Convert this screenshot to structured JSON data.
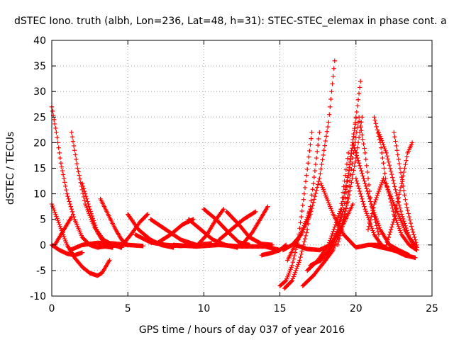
{
  "chart_data": {
    "type": "scatter",
    "title": "dSTEC Iono. truth (albh, Lon=236, Lat=48, h=31): STEC-STEC_elemax in phase cont. a",
    "xlabel": "GPS time / hours of day 037 of year 2016",
    "ylabel": "dSTEC  / TECUs",
    "xlim": [
      0,
      25
    ],
    "ylim": [
      -10,
      40
    ],
    "xticks": [
      0,
      5,
      10,
      15,
      20,
      25
    ],
    "yticks": [
      -10,
      -5,
      0,
      5,
      10,
      15,
      20,
      25,
      30,
      35,
      40
    ],
    "grid": true,
    "marker": "+",
    "color": "#ff0000",
    "series": [
      {
        "x": [
          0,
          0.3,
          0.6,
          1.0,
          1.5,
          2.0,
          2.5,
          3.0,
          3.5,
          4.0
        ],
        "y": [
          27,
          22,
          16,
          10,
          5,
          1.5,
          0,
          -0.5,
          -0.3,
          -0.5
        ]
      },
      {
        "x": [
          0,
          0.5,
          1.0,
          1.5,
          2.0,
          2.5,
          3.0,
          3.3,
          3.6,
          3.8
        ],
        "y": [
          8,
          4,
          0,
          -2.5,
          -4.3,
          -5.5,
          -6,
          -5.5,
          -4,
          -3
        ]
      },
      {
        "x": [
          0,
          0.5,
          1.0,
          1.5,
          2.0
        ],
        "y": [
          0,
          -1,
          -1.7,
          -2,
          -1.5
        ]
      },
      {
        "x": [
          0.2,
          0.5,
          0.8,
          1.1,
          1.3
        ],
        "y": [
          0,
          1.5,
          3,
          4.5,
          5.5
        ]
      },
      {
        "x": [
          1.3,
          1.7,
          2.2,
          2.8,
          3.4,
          4.0,
          4.6
        ],
        "y": [
          22,
          15,
          8,
          3.5,
          1,
          0,
          -0.5
        ]
      },
      {
        "x": [
          2.0,
          2.5,
          3.0,
          3.5,
          4.0
        ],
        "y": [
          12,
          7,
          2.5,
          0,
          -0.5
        ]
      },
      {
        "x": [
          1.2,
          2.0,
          3.0,
          4.0,
          5.0,
          6.0
        ],
        "y": [
          -1,
          0,
          0.4,
          0.3,
          0,
          -0.2
        ]
      },
      {
        "x": [
          3.2,
          3.7,
          4.2,
          4.6,
          5.0
        ],
        "y": [
          9,
          6,
          3,
          1,
          0
        ]
      },
      {
        "x": [
          5.0,
          5.7,
          6.5,
          7.2,
          8.0
        ],
        "y": [
          6,
          3,
          1,
          0,
          -0.5
        ]
      },
      {
        "x": [
          4.5,
          5.2,
          5.8,
          6.3
        ],
        "y": [
          -0.5,
          2,
          4.5,
          6
        ]
      },
      {
        "x": [
          5.5,
          6.5,
          7.5,
          8.5,
          9.5,
          10.5
        ],
        "y": [
          2,
          0.5,
          0,
          -0.2,
          0,
          0.3
        ]
      },
      {
        "x": [
          6.5,
          7.5,
          8.5,
          9.5
        ],
        "y": [
          5,
          3,
          1,
          0
        ]
      },
      {
        "x": [
          7.0,
          7.8,
          8.6,
          9.3
        ],
        "y": [
          0.5,
          2,
          4,
          5
        ]
      },
      {
        "x": [
          9.0,
          9.8,
          10.6,
          11.4,
          12.2
        ],
        "y": [
          5,
          3,
          1,
          0,
          -0.5
        ]
      },
      {
        "x": [
          9.5,
          10.2,
          10.8,
          11.3
        ],
        "y": [
          -0.3,
          2,
          5,
          7
        ]
      },
      {
        "x": [
          10.0,
          10.8,
          11.6,
          12.3,
          13.0
        ],
        "y": [
          7,
          5,
          2.5,
          0.5,
          0
        ]
      },
      {
        "x": [
          11.0,
          11.8,
          12.6,
          13.4
        ],
        "y": [
          1,
          3,
          5,
          6.5
        ]
      },
      {
        "x": [
          11.5,
          12.3,
          13.0,
          13.8,
          14.5
        ],
        "y": [
          6.5,
          4,
          1.5,
          0.2,
          0
        ]
      },
      {
        "x": [
          8.0,
          9.5,
          11.0,
          12.5,
          14.0,
          15.0
        ],
        "y": [
          0,
          -0.3,
          0,
          -0.3,
          -0.3,
          -1
        ]
      },
      {
        "x": [
          12.5,
          13.2,
          13.8,
          14.2
        ],
        "y": [
          0,
          2.5,
          5.5,
          7.5
        ]
      },
      {
        "x": [
          13.8,
          14.5,
          15.0,
          15.4
        ],
        "y": [
          -2,
          -1.5,
          -1,
          0
        ]
      },
      {
        "x": [
          15.0,
          15.4,
          15.8,
          16.2,
          16.6,
          17.1
        ],
        "y": [
          -8,
          -7,
          -4,
          1,
          10,
          22
        ]
      },
      {
        "x": [
          15.3,
          15.8,
          16.3,
          16.8,
          17.2,
          17.6
        ],
        "y": [
          -8.5,
          -7,
          -3,
          3,
          12,
          22
        ]
      },
      {
        "x": [
          15.2,
          15.8,
          16.4,
          17.0,
          17.6,
          18.2,
          18.6
        ],
        "y": [
          -1,
          0,
          2,
          6,
          13,
          24,
          36
        ]
      },
      {
        "x": [
          15.5,
          16.0,
          16.5,
          17.0
        ],
        "y": [
          -3,
          0,
          3,
          7
        ]
      },
      {
        "x": [
          16.5,
          17.2,
          18.0,
          18.8,
          19.5,
          20.0
        ],
        "y": [
          -8,
          -6,
          -3,
          3,
          14,
          25
        ]
      },
      {
        "x": [
          16.8,
          17.5,
          18.2,
          19.0,
          19.5
        ],
        "y": [
          -5,
          -3,
          0,
          7,
          18
        ]
      },
      {
        "x": [
          17.0,
          17.7,
          18.5,
          19.2,
          19.8,
          20.3
        ],
        "y": [
          -4,
          -3,
          0,
          7,
          20,
          32
        ]
      },
      {
        "x": [
          18.0,
          18.5,
          19.0,
          19.5,
          20.0,
          20.4
        ],
        "y": [
          -3,
          -1,
          3,
          9,
          17,
          25
        ]
      },
      {
        "x": [
          18.8,
          19.3,
          19.8,
          20.2,
          20.6,
          21.0,
          21.5
        ],
        "y": [
          0,
          6,
          17,
          25,
          18,
          8,
          2
        ]
      },
      {
        "x": [
          16.0,
          16.8,
          17.6,
          18.3,
          19.0,
          19.8
        ],
        "y": [
          0,
          -0.8,
          -1,
          0,
          3,
          8
        ]
      },
      {
        "x": [
          17.7,
          18.5,
          19.2,
          20.0,
          20.8,
          21.5,
          22.0
        ],
        "y": [
          12,
          6,
          2,
          -0.5,
          0,
          0,
          -0.5
        ]
      },
      {
        "x": [
          19.8,
          20.3,
          21.0,
          21.6,
          22.2,
          22.8,
          23.5
        ],
        "y": [
          20,
          15,
          8,
          3,
          0,
          -1,
          -2
        ]
      },
      {
        "x": [
          20.0,
          20.6,
          21.2,
          21.8,
          22.4,
          23.0
        ],
        "y": [
          13,
          7,
          2,
          -0.5,
          -1,
          -1.5
        ]
      },
      {
        "x": [
          20.8,
          21.2,
          21.8,
          22.5,
          23.2,
          23.8
        ],
        "y": [
          3,
          8,
          13,
          8,
          3,
          0
        ]
      },
      {
        "x": [
          21.2,
          21.6,
          22.0,
          22.5,
          23.0,
          23.5,
          24.0
        ],
        "y": [
          25,
          20,
          12,
          6,
          2,
          0,
          -1
        ]
      },
      {
        "x": [
          21.5,
          22.0,
          22.5,
          23.0,
          23.5,
          24.0
        ],
        "y": [
          22,
          18,
          12,
          6,
          1.5,
          -0.5
        ]
      },
      {
        "x": [
          22.5,
          22.9,
          23.3,
          23.7,
          24.0
        ],
        "y": [
          22,
          15,
          8,
          3,
          0
        ]
      },
      {
        "x": [
          22.0,
          22.5,
          23.0,
          23.4,
          23.7
        ],
        "y": [
          0,
          5,
          12,
          18,
          20
        ]
      },
      {
        "x": [
          21.0,
          21.7,
          22.5,
          23.2,
          23.9
        ],
        "y": [
          0,
          -0.5,
          -1,
          -2,
          -2.5
        ]
      }
    ]
  }
}
